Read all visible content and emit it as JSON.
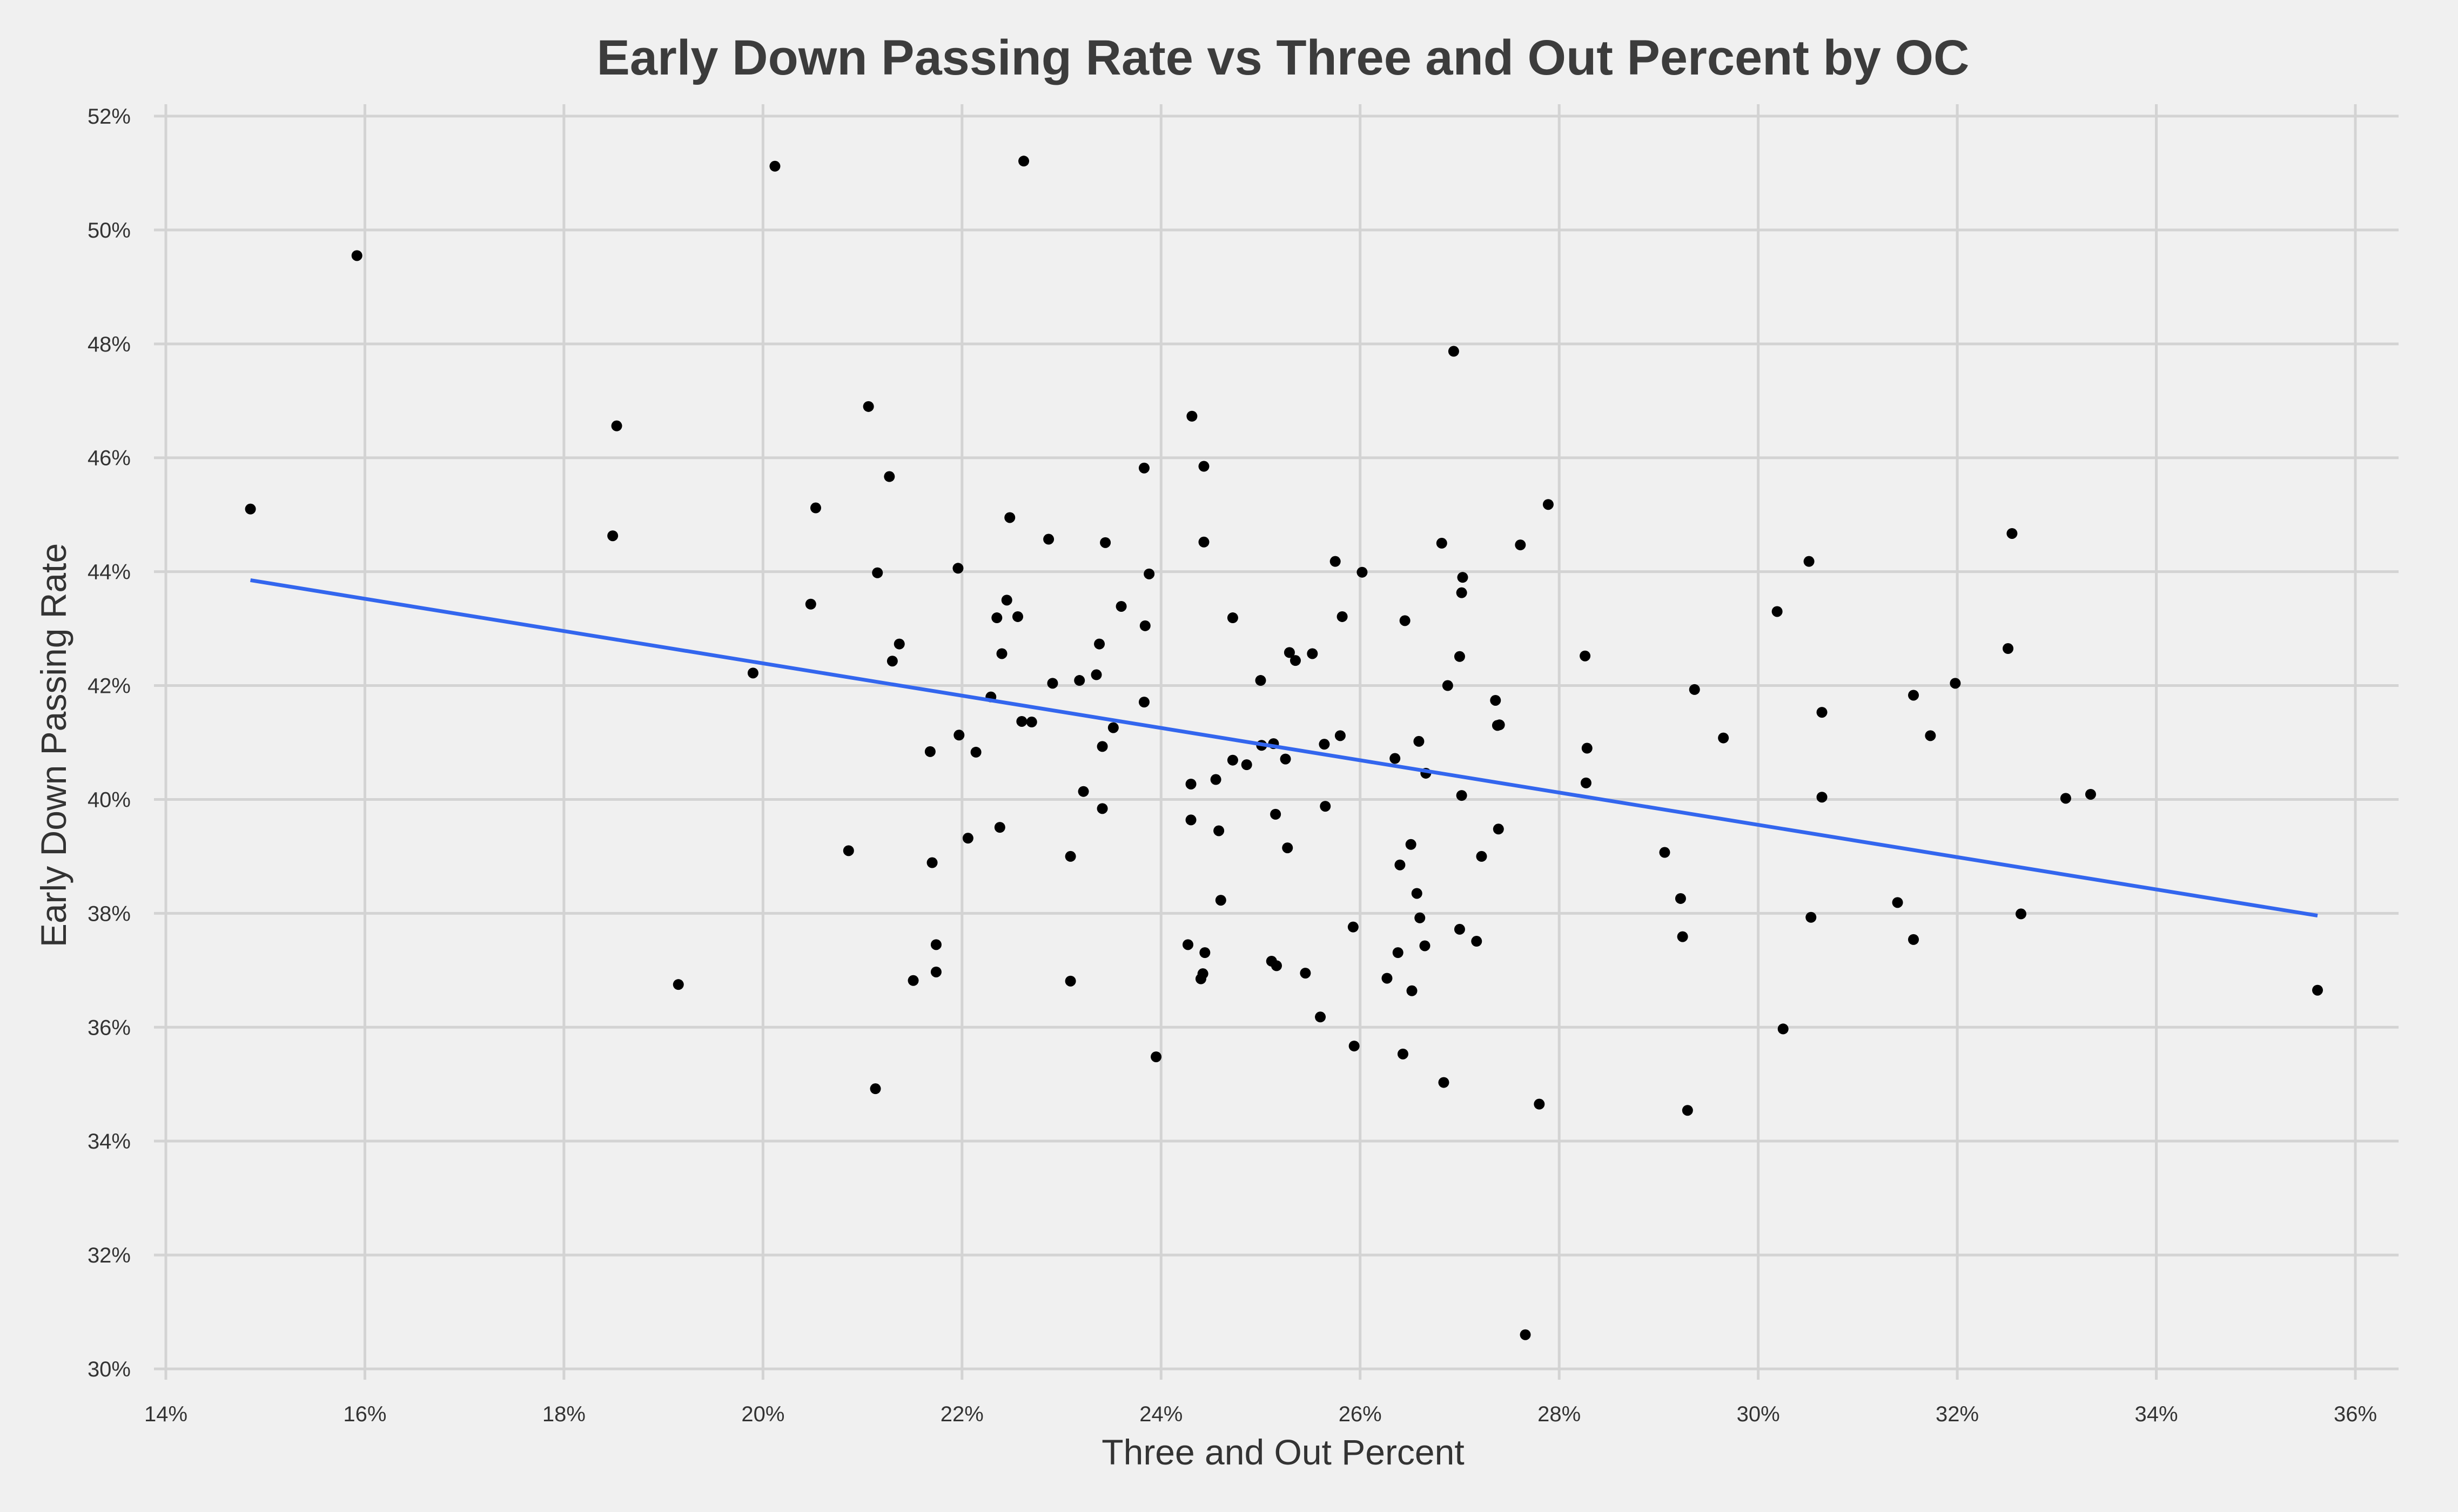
{
  "chart_data": {
    "type": "scatter",
    "title": "Early Down Passing Rate vs Three and Out Percent by OC",
    "xlabel": "Three and Out Percent",
    "ylabel": "Early Down Passing Rate",
    "xlim": [
      0.14,
      0.36
    ],
    "ylim": [
      0.3,
      0.52
    ],
    "x_ticks": [
      0.14,
      0.16,
      0.18,
      0.2,
      0.22,
      0.24,
      0.26,
      0.28,
      0.3,
      0.32,
      0.34,
      0.36
    ],
    "x_tick_labels": [
      "14%",
      "16%",
      "18%",
      "20%",
      "22%",
      "24%",
      "26%",
      "28%",
      "30%",
      "32%",
      "34%",
      "36%"
    ],
    "y_ticks": [
      0.3,
      0.32,
      0.34,
      0.36,
      0.38,
      0.4,
      0.42,
      0.44,
      0.46,
      0.48,
      0.5,
      0.52
    ],
    "y_tick_labels": [
      "30%",
      "32%",
      "34%",
      "36%",
      "38%",
      "40%",
      "42%",
      "44%",
      "46%",
      "48%",
      "50%",
      "52%"
    ],
    "grid": true,
    "point_color": "#000000",
    "trendline": {
      "x": [
        0.1485,
        0.3562
      ],
      "y": [
        0.4385,
        0.3796
      ],
      "color": "#3366ee"
    },
    "points": [
      [
        0.1485,
        0.451
      ],
      [
        0.1592,
        0.4955
      ],
      [
        0.1849,
        0.4463
      ],
      [
        0.1853,
        0.4656
      ],
      [
        0.1915,
        0.3675
      ],
      [
        0.199,
        0.4222
      ],
      [
        0.2012,
        0.5112
      ],
      [
        0.2048,
        0.4343
      ],
      [
        0.2053,
        0.4512
      ],
      [
        0.2086,
        0.391
      ],
      [
        0.2106,
        0.469
      ],
      [
        0.2113,
        0.3492
      ],
      [
        0.2115,
        0.4398
      ],
      [
        0.2127,
        0.4567
      ],
      [
        0.213,
        0.4243
      ],
      [
        0.2137,
        0.4273
      ],
      [
        0.2151,
        0.3682
      ],
      [
        0.2168,
        0.4084
      ],
      [
        0.217,
        0.3889
      ],
      [
        0.2174,
        0.3745
      ],
      [
        0.2174,
        0.3697
      ],
      [
        0.2196,
        0.4406
      ],
      [
        0.2197,
        0.4113
      ],
      [
        0.2206,
        0.3932
      ],
      [
        0.2214,
        0.4083
      ],
      [
        0.2229,
        0.418
      ],
      [
        0.2235,
        0.4319
      ],
      [
        0.2238,
        0.3951
      ],
      [
        0.224,
        0.4256
      ],
      [
        0.2245,
        0.435
      ],
      [
        0.2248,
        0.4495
      ],
      [
        0.2256,
        0.4321
      ],
      [
        0.226,
        0.4137
      ],
      [
        0.2262,
        0.5121
      ],
      [
        0.227,
        0.4136
      ],
      [
        0.2287,
        0.4457
      ],
      [
        0.2291,
        0.4204
      ],
      [
        0.2309,
        0.39
      ],
      [
        0.2309,
        0.3681
      ],
      [
        0.2318,
        0.4209
      ],
      [
        0.2322,
        0.4014
      ],
      [
        0.2335,
        0.4219
      ],
      [
        0.2338,
        0.4273
      ],
      [
        0.2341,
        0.4093
      ],
      [
        0.2341,
        0.3984
      ],
      [
        0.2344,
        0.4451
      ],
      [
        0.2352,
        0.4126
      ],
      [
        0.236,
        0.4339
      ],
      [
        0.2383,
        0.4582
      ],
      [
        0.2383,
        0.4171
      ],
      [
        0.2384,
        0.4305
      ],
      [
        0.2388,
        0.4396
      ],
      [
        0.2395,
        0.3548
      ],
      [
        0.2427,
        0.3745
      ],
      [
        0.243,
        0.4027
      ],
      [
        0.243,
        0.3964
      ],
      [
        0.2431,
        0.4673
      ],
      [
        0.244,
        0.3685
      ],
      [
        0.2442,
        0.3694
      ],
      [
        0.2443,
        0.4585
      ],
      [
        0.2443,
        0.4452
      ],
      [
        0.2444,
        0.3731
      ],
      [
        0.2455,
        0.4035
      ],
      [
        0.2458,
        0.3945
      ],
      [
        0.246,
        0.3823
      ],
      [
        0.2472,
        0.4069
      ],
      [
        0.2472,
        0.4319
      ],
      [
        0.2486,
        0.4061
      ],
      [
        0.25,
        0.4209
      ],
      [
        0.2501,
        0.4095
      ],
      [
        0.2511,
        0.3716
      ],
      [
        0.2513,
        0.4098
      ],
      [
        0.2515,
        0.3974
      ],
      [
        0.2516,
        0.3708
      ],
      [
        0.2525,
        0.4071
      ],
      [
        0.2527,
        0.3915
      ],
      [
        0.2529,
        0.4258
      ],
      [
        0.2535,
        0.4244
      ],
      [
        0.2545,
        0.3695
      ],
      [
        0.2552,
        0.4256
      ],
      [
        0.256,
        0.3618
      ],
      [
        0.2564,
        0.4097
      ],
      [
        0.2565,
        0.3988
      ],
      [
        0.2575,
        0.4418
      ],
      [
        0.258,
        0.4112
      ],
      [
        0.2582,
        0.4321
      ],
      [
        0.2593,
        0.3776
      ],
      [
        0.2594,
        0.3567
      ],
      [
        0.2602,
        0.4399
      ],
      [
        0.2627,
        0.3686
      ],
      [
        0.2635,
        0.4072
      ],
      [
        0.2638,
        0.3731
      ],
      [
        0.264,
        0.3885
      ],
      [
        0.2643,
        0.3553
      ],
      [
        0.2645,
        0.4314
      ],
      [
        0.2651,
        0.3921
      ],
      [
        0.2652,
        0.3664
      ],
      [
        0.2657,
        0.3835
      ],
      [
        0.2659,
        0.4102
      ],
      [
        0.266,
        0.3792
      ],
      [
        0.2665,
        0.3743
      ],
      [
        0.2666,
        0.4046
      ],
      [
        0.2682,
        0.445
      ],
      [
        0.2684,
        0.3503
      ],
      [
        0.2688,
        0.42
      ],
      [
        0.2694,
        0.4787
      ],
      [
        0.27,
        0.4251
      ],
      [
        0.27,
        0.3772
      ],
      [
        0.2702,
        0.4363
      ],
      [
        0.2702,
        0.4007
      ],
      [
        0.2703,
        0.439
      ],
      [
        0.2717,
        0.3751
      ],
      [
        0.2722,
        0.39
      ],
      [
        0.2736,
        0.4174
      ],
      [
        0.2738,
        0.413
      ],
      [
        0.2739,
        0.3948
      ],
      [
        0.274,
        0.4131
      ],
      [
        0.2761,
        0.4447
      ],
      [
        0.2766,
        0.306
      ],
      [
        0.278,
        0.3465
      ],
      [
        0.2789,
        0.4518
      ],
      [
        0.2826,
        0.4252
      ],
      [
        0.2827,
        0.4029
      ],
      [
        0.2828,
        0.409
      ],
      [
        0.2906,
        0.3907
      ],
      [
        0.2922,
        0.3826
      ],
      [
        0.2924,
        0.3759
      ],
      [
        0.2929,
        0.3454
      ],
      [
        0.2936,
        0.4193
      ],
      [
        0.2965,
        0.4108
      ],
      [
        0.3019,
        0.433
      ],
      [
        0.3025,
        0.3597
      ],
      [
        0.3051,
        0.4418
      ],
      [
        0.3053,
        0.3793
      ],
      [
        0.3064,
        0.4004
      ],
      [
        0.3064,
        0.4153
      ],
      [
        0.314,
        0.3819
      ],
      [
        0.3156,
        0.3754
      ],
      [
        0.3156,
        0.4183
      ],
      [
        0.3173,
        0.4112
      ],
      [
        0.3198,
        0.4204
      ],
      [
        0.3251,
        0.4265
      ],
      [
        0.3255,
        0.4467
      ],
      [
        0.3264,
        0.3799
      ],
      [
        0.3309,
        0.4002
      ],
      [
        0.3334,
        0.4009
      ],
      [
        0.3562,
        0.3665
      ]
    ]
  }
}
